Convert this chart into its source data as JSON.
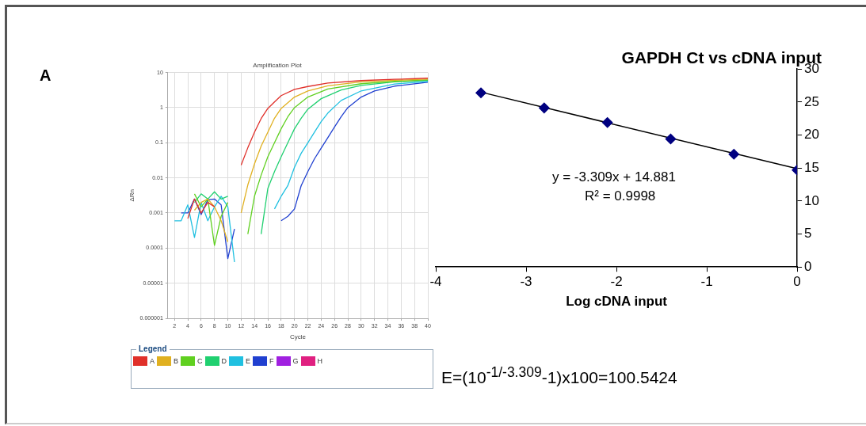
{
  "chart_data": [
    {
      "type": "line",
      "title": "Amplification Plot",
      "xlabel": "Cycle",
      "ylabel": "ΔRn",
      "legend_title": "Legend",
      "log": "y",
      "grid": true,
      "legend": "bottom",
      "marker": "none",
      "line_style": "solid",
      "xlim": [
        1,
        40
      ],
      "xticks": [
        2,
        4,
        6,
        8,
        10,
        12,
        14,
        16,
        18,
        20,
        22,
        24,
        26,
        28,
        30,
        32,
        34,
        36,
        38,
        40
      ],
      "ylim": [
        1e-06,
        10
      ],
      "yticks": [
        {
          "value": 1e-06,
          "label": "0.000001"
        },
        {
          "value": 1e-05,
          "label": "0.00001"
        },
        0.0001,
        0.001,
        0.01,
        0.1,
        1,
        10
      ],
      "annotations": [
        "A"
      ],
      "series": [
        {
          "name": "A",
          "color": "#e0302a",
          "x": [
            4,
            5,
            6,
            7,
            8,
            11,
            12,
            13,
            14,
            15,
            16,
            17,
            18,
            20,
            22,
            25,
            30,
            35,
            40
          ],
          "values": [
            0.0007,
            0.0025,
            0.001,
            0.002,
            0.0015,
            null,
            0.023,
            0.072,
            0.2,
            0.49,
            0.95,
            1.45,
            2.2,
            3.3,
            4.0,
            5.0,
            5.9,
            6.4,
            6.9
          ]
        },
        {
          "name": "B",
          "color": "#e0b020",
          "x": [
            5,
            6,
            7,
            8,
            9,
            10,
            11,
            12,
            13,
            14,
            15,
            16,
            17,
            18,
            20,
            22,
            25,
            30,
            35,
            40
          ],
          "values": [
            0.0012,
            0.002,
            0.0025,
            0.0015,
            0.0006,
            0.00015,
            null,
            0.001,
            0.0063,
            0.025,
            0.08,
            0.2,
            0.5,
            0.95,
            2.0,
            3.0,
            4.2,
            5.4,
            6.0,
            6.5
          ]
        },
        {
          "name": "C",
          "color": "#60d020",
          "x": [
            5,
            6,
            7,
            8,
            9,
            10,
            11,
            13,
            14,
            15,
            16,
            17,
            18,
            19,
            20,
            22,
            25,
            30,
            35,
            40
          ],
          "values": [
            0.0035,
            0.0015,
            0.0025,
            0.00012,
            0.0008,
            0.002,
            null,
            0.00025,
            0.003,
            0.012,
            0.04,
            0.1,
            0.25,
            0.55,
            1.0,
            2.0,
            3.4,
            4.8,
            5.6,
            6.2
          ]
        },
        {
          "name": "D",
          "color": "#20d070",
          "x": [
            5,
            6,
            7,
            8,
            9,
            10,
            11,
            15,
            16,
            17,
            18,
            19,
            20,
            21,
            22,
            24,
            27,
            30,
            35,
            40
          ],
          "values": [
            0.002,
            0.0035,
            0.0025,
            0.004,
            0.0025,
            0.003,
            null,
            0.00025,
            0.005,
            0.015,
            0.04,
            0.1,
            0.25,
            0.5,
            0.9,
            1.8,
            3.2,
            4.3,
            5.4,
            6.0
          ]
        },
        {
          "name": "E",
          "color": "#20c0e0",
          "x": [
            2,
            3,
            4,
            5,
            6,
            7,
            8,
            9,
            10,
            11,
            12,
            17,
            18,
            19,
            20,
            21,
            22,
            23,
            24,
            25,
            27,
            30,
            35,
            40
          ],
          "values": [
            0.0006,
            0.0006,
            0.0017,
            0.0002,
            0.002,
            0.0006,
            0.0015,
            0.003,
            0.0015,
            4e-05,
            null,
            0.0013,
            0.003,
            0.006,
            0.02,
            0.05,
            0.1,
            0.2,
            0.4,
            0.7,
            1.6,
            3.0,
            4.7,
            5.6
          ]
        },
        {
          "name": "F",
          "color": "#2040d0",
          "x": [
            3,
            4,
            5,
            6,
            7,
            8,
            9,
            10,
            11,
            12,
            18,
            19,
            20,
            21,
            22,
            23,
            24,
            25,
            26,
            27,
            28,
            30,
            32,
            35,
            40
          ],
          "values": [
            0.001,
            0.001,
            0.0025,
            0.0009,
            0.0024,
            0.0025,
            0.0017,
            5e-05,
            0.00035,
            null,
            0.0006,
            0.0008,
            0.0013,
            0.006,
            0.015,
            0.035,
            0.07,
            0.14,
            0.28,
            0.55,
            1.0,
            2.0,
            3.0,
            4.1,
            5.3
          ]
        },
        {
          "name": "G",
          "color": "#a020e0"
        },
        {
          "name": "H",
          "color": "#e02080"
        }
      ]
    },
    {
      "type": "scatter",
      "title": "GAPDH Ct vs cDNA input",
      "xlabel": "Log cDNA input",
      "grid": false,
      "legend": false,
      "marker": "diamond",
      "xlim": [
        -4,
        0
      ],
      "xticks": [
        -4,
        -3,
        -2,
        -1,
        0
      ],
      "ylim": [
        0,
        30
      ],
      "yticks": [
        0,
        5,
        10,
        15,
        20,
        25,
        30
      ],
      "annotations": [
        "y = -3.309x + 14.881",
        "R² = 0.9998",
        "E=(10$^{-1/-3.309}$-1)x100=100.5424"
      ],
      "series": [
        {
          "color": "#000080",
          "x": [
            -3.5,
            -2.8,
            -2.1,
            -1.4,
            -0.7,
            0
          ],
          "values": [
            26.4,
            24.1,
            21.9,
            19.4,
            17.1,
            14.7
          ]
        },
        {
          "type": "line",
          "color": "#000000",
          "marker": "none",
          "x": [
            -3.5,
            0
          ],
          "values": [
            26.5,
            14.9
          ]
        }
      ]
    }
  ]
}
